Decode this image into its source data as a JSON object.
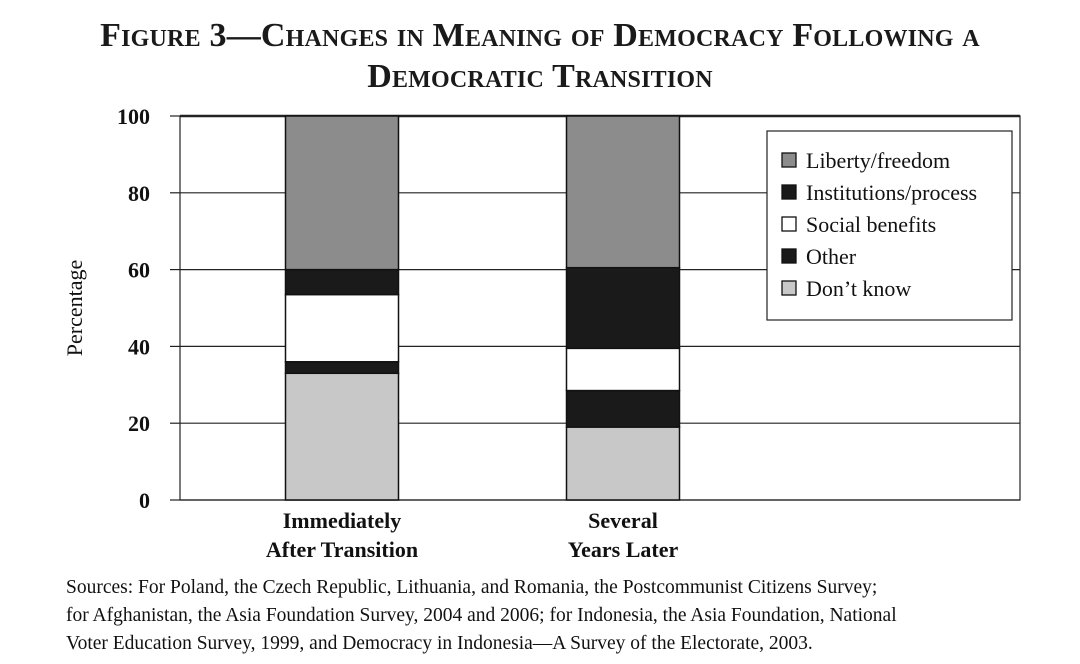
{
  "figure": {
    "title_line1": "Figure 3—Changes in Meaning of Democracy Following a",
    "title_line2": "Democratic Transition",
    "sources": [
      "Sources: For Poland, the Czech Republic, Lithuania, and Romania, the Postcommunist Citizens Survey;",
      "for Afghanistan, the Asia Foundation Survey, 2004 and 2006; for Indonesia, the Asia Foundation, National",
      "Voter Education Survey, 1999, and Democracy in Indonesia—A Survey of the Electorate, 2003."
    ]
  },
  "chart_data": {
    "type": "bar",
    "stacked": true,
    "categories": [
      [
        "Immediately",
        "After Transition"
      ],
      [
        "Several",
        "Years Later"
      ]
    ],
    "ylabel": "Percentage",
    "ylim": [
      0,
      100
    ],
    "yticks": [
      0,
      20,
      40,
      60,
      80,
      100
    ],
    "grid": true,
    "legend_position": "top-right",
    "series": [
      {
        "name": "Don’t know",
        "values": [
          33,
          19
        ],
        "color": "#c8c8c8"
      },
      {
        "name": "Other",
        "values": [
          3,
          9.5
        ],
        "color": "#1a1a1a"
      },
      {
        "name": "Social benefits",
        "values": [
          17.5,
          11
        ],
        "color": "#ffffff"
      },
      {
        "name": "Institutions/process",
        "values": [
          6.5,
          21
        ],
        "color": "#1a1a1a"
      },
      {
        "name": "Liberty/freedom",
        "values": [
          40,
          39.5
        ],
        "color": "#8c8c8c"
      }
    ],
    "legend_order": [
      "Liberty/freedom",
      "Institutions/process",
      "Social benefits",
      "Other",
      "Don’t know"
    ]
  }
}
